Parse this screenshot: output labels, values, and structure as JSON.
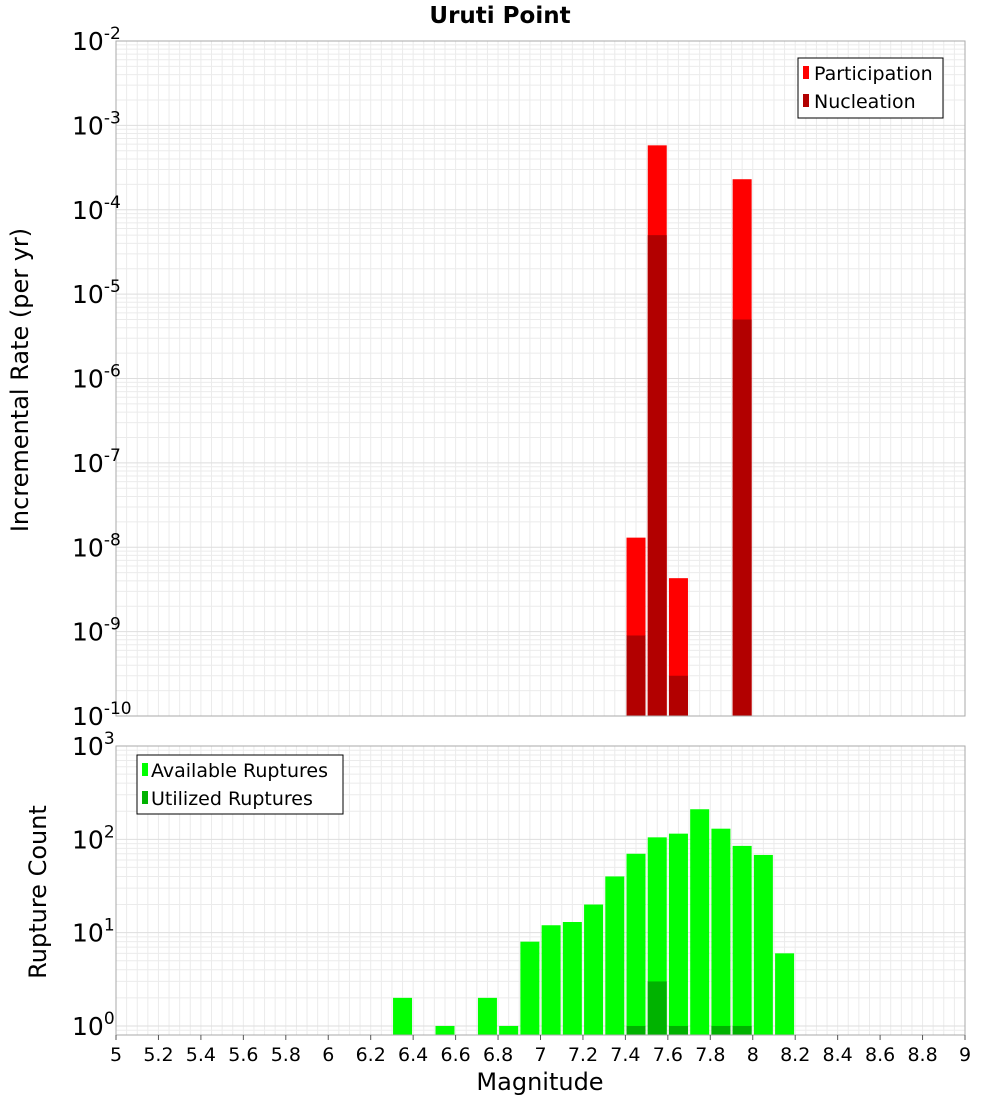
{
  "chart_data": [
    {
      "type": "bar",
      "title": "Uruti Point",
      "xlabel": "",
      "ylabel": "Incremental Rate (per yr)",
      "yscale": "log",
      "ylim": [
        1e-10,
        0.01
      ],
      "xlim": [
        5,
        9
      ],
      "grid": true,
      "legend_position": "top-right",
      "y_ticks": [
        {
          "base": "10",
          "exp": "-10"
        },
        {
          "base": "10",
          "exp": "-9"
        },
        {
          "base": "10",
          "exp": "-8"
        },
        {
          "base": "10",
          "exp": "-7"
        },
        {
          "base": "10",
          "exp": "-6"
        },
        {
          "base": "10",
          "exp": "-5"
        },
        {
          "base": "10",
          "exp": "-4"
        },
        {
          "base": "10",
          "exp": "-3"
        },
        {
          "base": "10",
          "exp": "-2"
        }
      ],
      "series": [
        {
          "name": "Participation",
          "color": "#ff0000",
          "x": [
            7.45,
            7.55,
            7.65,
            7.95
          ],
          "values": [
            1.3e-08,
            0.00058,
            4.3e-09,
            0.00023
          ]
        },
        {
          "name": "Nucleation",
          "color": "#b20000",
          "x": [
            7.45,
            7.55,
            7.65,
            7.95
          ],
          "values": [
            9e-10,
            5e-05,
            3e-10,
            5e-06
          ]
        }
      ]
    },
    {
      "type": "bar",
      "title": "",
      "xlabel": "Magnitude",
      "ylabel": "Rupture Count",
      "yscale": "log",
      "ylim": [
        0.8,
        1000
      ],
      "xlim": [
        5,
        9
      ],
      "grid": true,
      "legend_position": "top-left",
      "y_ticks": [
        {
          "base": "10",
          "exp": "0",
          "value": 1
        },
        {
          "base": "10",
          "exp": "1",
          "value": 10
        },
        {
          "base": "10",
          "exp": "2",
          "value": 100
        },
        {
          "base": "10",
          "exp": "3",
          "value": 1000
        }
      ],
      "x_ticks": [
        "5",
        "5.2",
        "5.4",
        "5.6",
        "5.8",
        "6",
        "6.2",
        "6.4",
        "6.6",
        "6.8",
        "7",
        "7.2",
        "7.4",
        "7.6",
        "7.8",
        "8",
        "8.2",
        "8.4",
        "8.6",
        "8.8",
        "9"
      ],
      "series": [
        {
          "name": "Available Ruptures",
          "color": "#00ff00",
          "x": [
            6.35,
            6.55,
            6.75,
            6.85,
            6.95,
            7.05,
            7.15,
            7.25,
            7.35,
            7.45,
            7.55,
            7.65,
            7.75,
            7.85,
            7.95,
            8.05,
            8.15
          ],
          "values": [
            2,
            1,
            2,
            1,
            8,
            12,
            13,
            20,
            40,
            70,
            105,
            115,
            210,
            130,
            85,
            68,
            6
          ]
        },
        {
          "name": "Utilized Ruptures",
          "color": "#00b200",
          "x": [
            7.45,
            7.55,
            7.65,
            7.85,
            7.95
          ],
          "values": [
            1,
            3,
            1,
            1,
            1
          ]
        }
      ]
    }
  ]
}
